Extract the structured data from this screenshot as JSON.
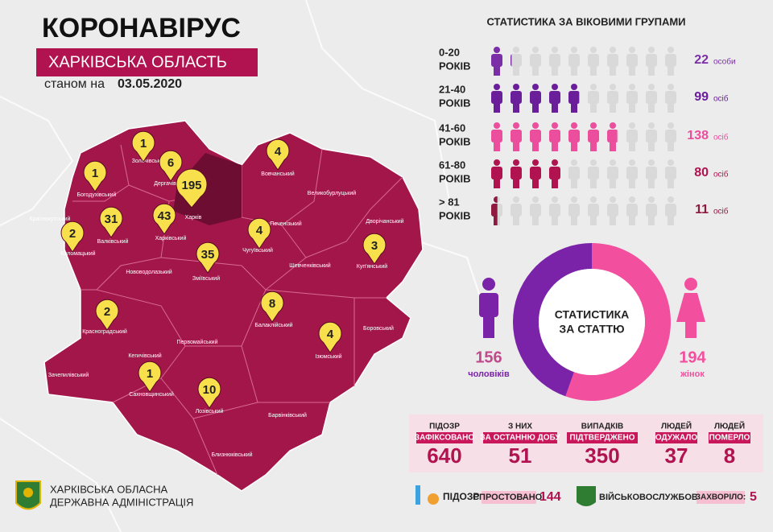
{
  "header": {
    "title": "КОРОНАВІРУС",
    "subtitle": "ХАРКІВСЬКА ОБЛАСТЬ",
    "date_prefix": "станом на",
    "date": "03.05.2020"
  },
  "map": {
    "districts": [
      {
        "name": "Золочівський",
        "cases": 1
      },
      {
        "name": "Богодухівський",
        "cases": 1
      },
      {
        "name": "Дергачівський",
        "cases": 6
      },
      {
        "name": "Харків",
        "cases": 195
      },
      {
        "name": "Харківський",
        "cases": 43
      },
      {
        "name": "Валківський",
        "cases": 31
      },
      {
        "name": "Коломацький",
        "cases": 2
      },
      {
        "name": "Зміївський",
        "cases": 35
      },
      {
        "name": "Чугуївський",
        "cases": 4
      },
      {
        "name": "Вовчанський",
        "cases": 4
      },
      {
        "name": "Куп'янський",
        "cases": 3
      },
      {
        "name": "Балаклійський",
        "cases": 8
      },
      {
        "name": "Ізюмський",
        "cases": 4
      },
      {
        "name": "Красноградський",
        "cases": 2
      },
      {
        "name": "Сахновщинський",
        "cases": 1
      },
      {
        "name": "Лозівський",
        "cases": 10
      },
      {
        "name": "Краснокутський"
      },
      {
        "name": "Великобурлуцький"
      },
      {
        "name": "Печенізький"
      },
      {
        "name": "Дворічанський"
      },
      {
        "name": "Шевченківський"
      },
      {
        "name": "Нововодолазький"
      },
      {
        "name": "Боровський"
      },
      {
        "name": "Кегичівський"
      },
      {
        "name": "Первомайський"
      },
      {
        "name": "Зачепилівський"
      },
      {
        "name": "Барвінківський"
      },
      {
        "name": "Близнюківський"
      }
    ]
  },
  "age_stats": {
    "title": "СТАТИСТИКА ЗА ВІКОВИМИ ГРУПАМИ",
    "groups": [
      {
        "range": "0-20",
        "unit_label": "РОКІВ",
        "value": 22,
        "people_label": "особи",
        "color": "#7b2fa7"
      },
      {
        "range": "21-40",
        "unit_label": "РОКІВ",
        "value": 99,
        "people_label": "осіб",
        "color": "#6a1e9a"
      },
      {
        "range": "41-60",
        "unit_label": "РОКІВ",
        "value": 138,
        "people_label": "осіб",
        "color": "#ea4e9d"
      },
      {
        "range": "61-80",
        "unit_label": "РОКІВ",
        "value": 80,
        "people_label": "осіб",
        "color": "#b0134f"
      },
      {
        "range": "> 81",
        "unit_label": "РОКІВ",
        "value": 11,
        "people_label": "осіб",
        "color": "#8e1a3f"
      }
    ]
  },
  "gender_stats": {
    "title_lines": [
      "СТАТИСТИКА",
      "ЗА СТАТТЮ"
    ],
    "men": {
      "value": 156,
      "label": "чоловіків",
      "color": "#7a22a8"
    },
    "women": {
      "value": 194,
      "label": "жінок",
      "color": "#f24f9e"
    }
  },
  "totals": [
    {
      "label": "ПІДОЗР",
      "highlight": "ЗАФІКСОВАНО",
      "value": 640
    },
    {
      "label": "З НИХ",
      "highlight": "ЗА ОСТАННЮ ДОБУ",
      "value": 51
    },
    {
      "label": "ВИПАДКІВ",
      "highlight": "ПІДТВЕРДЖЕНО",
      "value": 350
    },
    {
      "label": "ЛЮДЕЙ",
      "highlight": "ОДУЖАЛО",
      "value": 37
    },
    {
      "label": "ЛЮДЕЙ",
      "highlight": "ПОМЕРЛО",
      "value": 8
    }
  ],
  "footer": {
    "rejected": {
      "label": "ПІДОЗР",
      "highlight": "СПРОСТОВАНО:",
      "value": 144
    },
    "military": {
      "label": "ВІЙСЬКОВОСЛУЖБОВЦІВ",
      "highlight": "ЗАХВОРІЛО:",
      "value": 5
    },
    "org_lines": [
      "ХАРКІВСЬКА ОБЛАСНА",
      "ДЕРЖАВНА АДМІНІСТРАЦІЯ"
    ]
  }
}
